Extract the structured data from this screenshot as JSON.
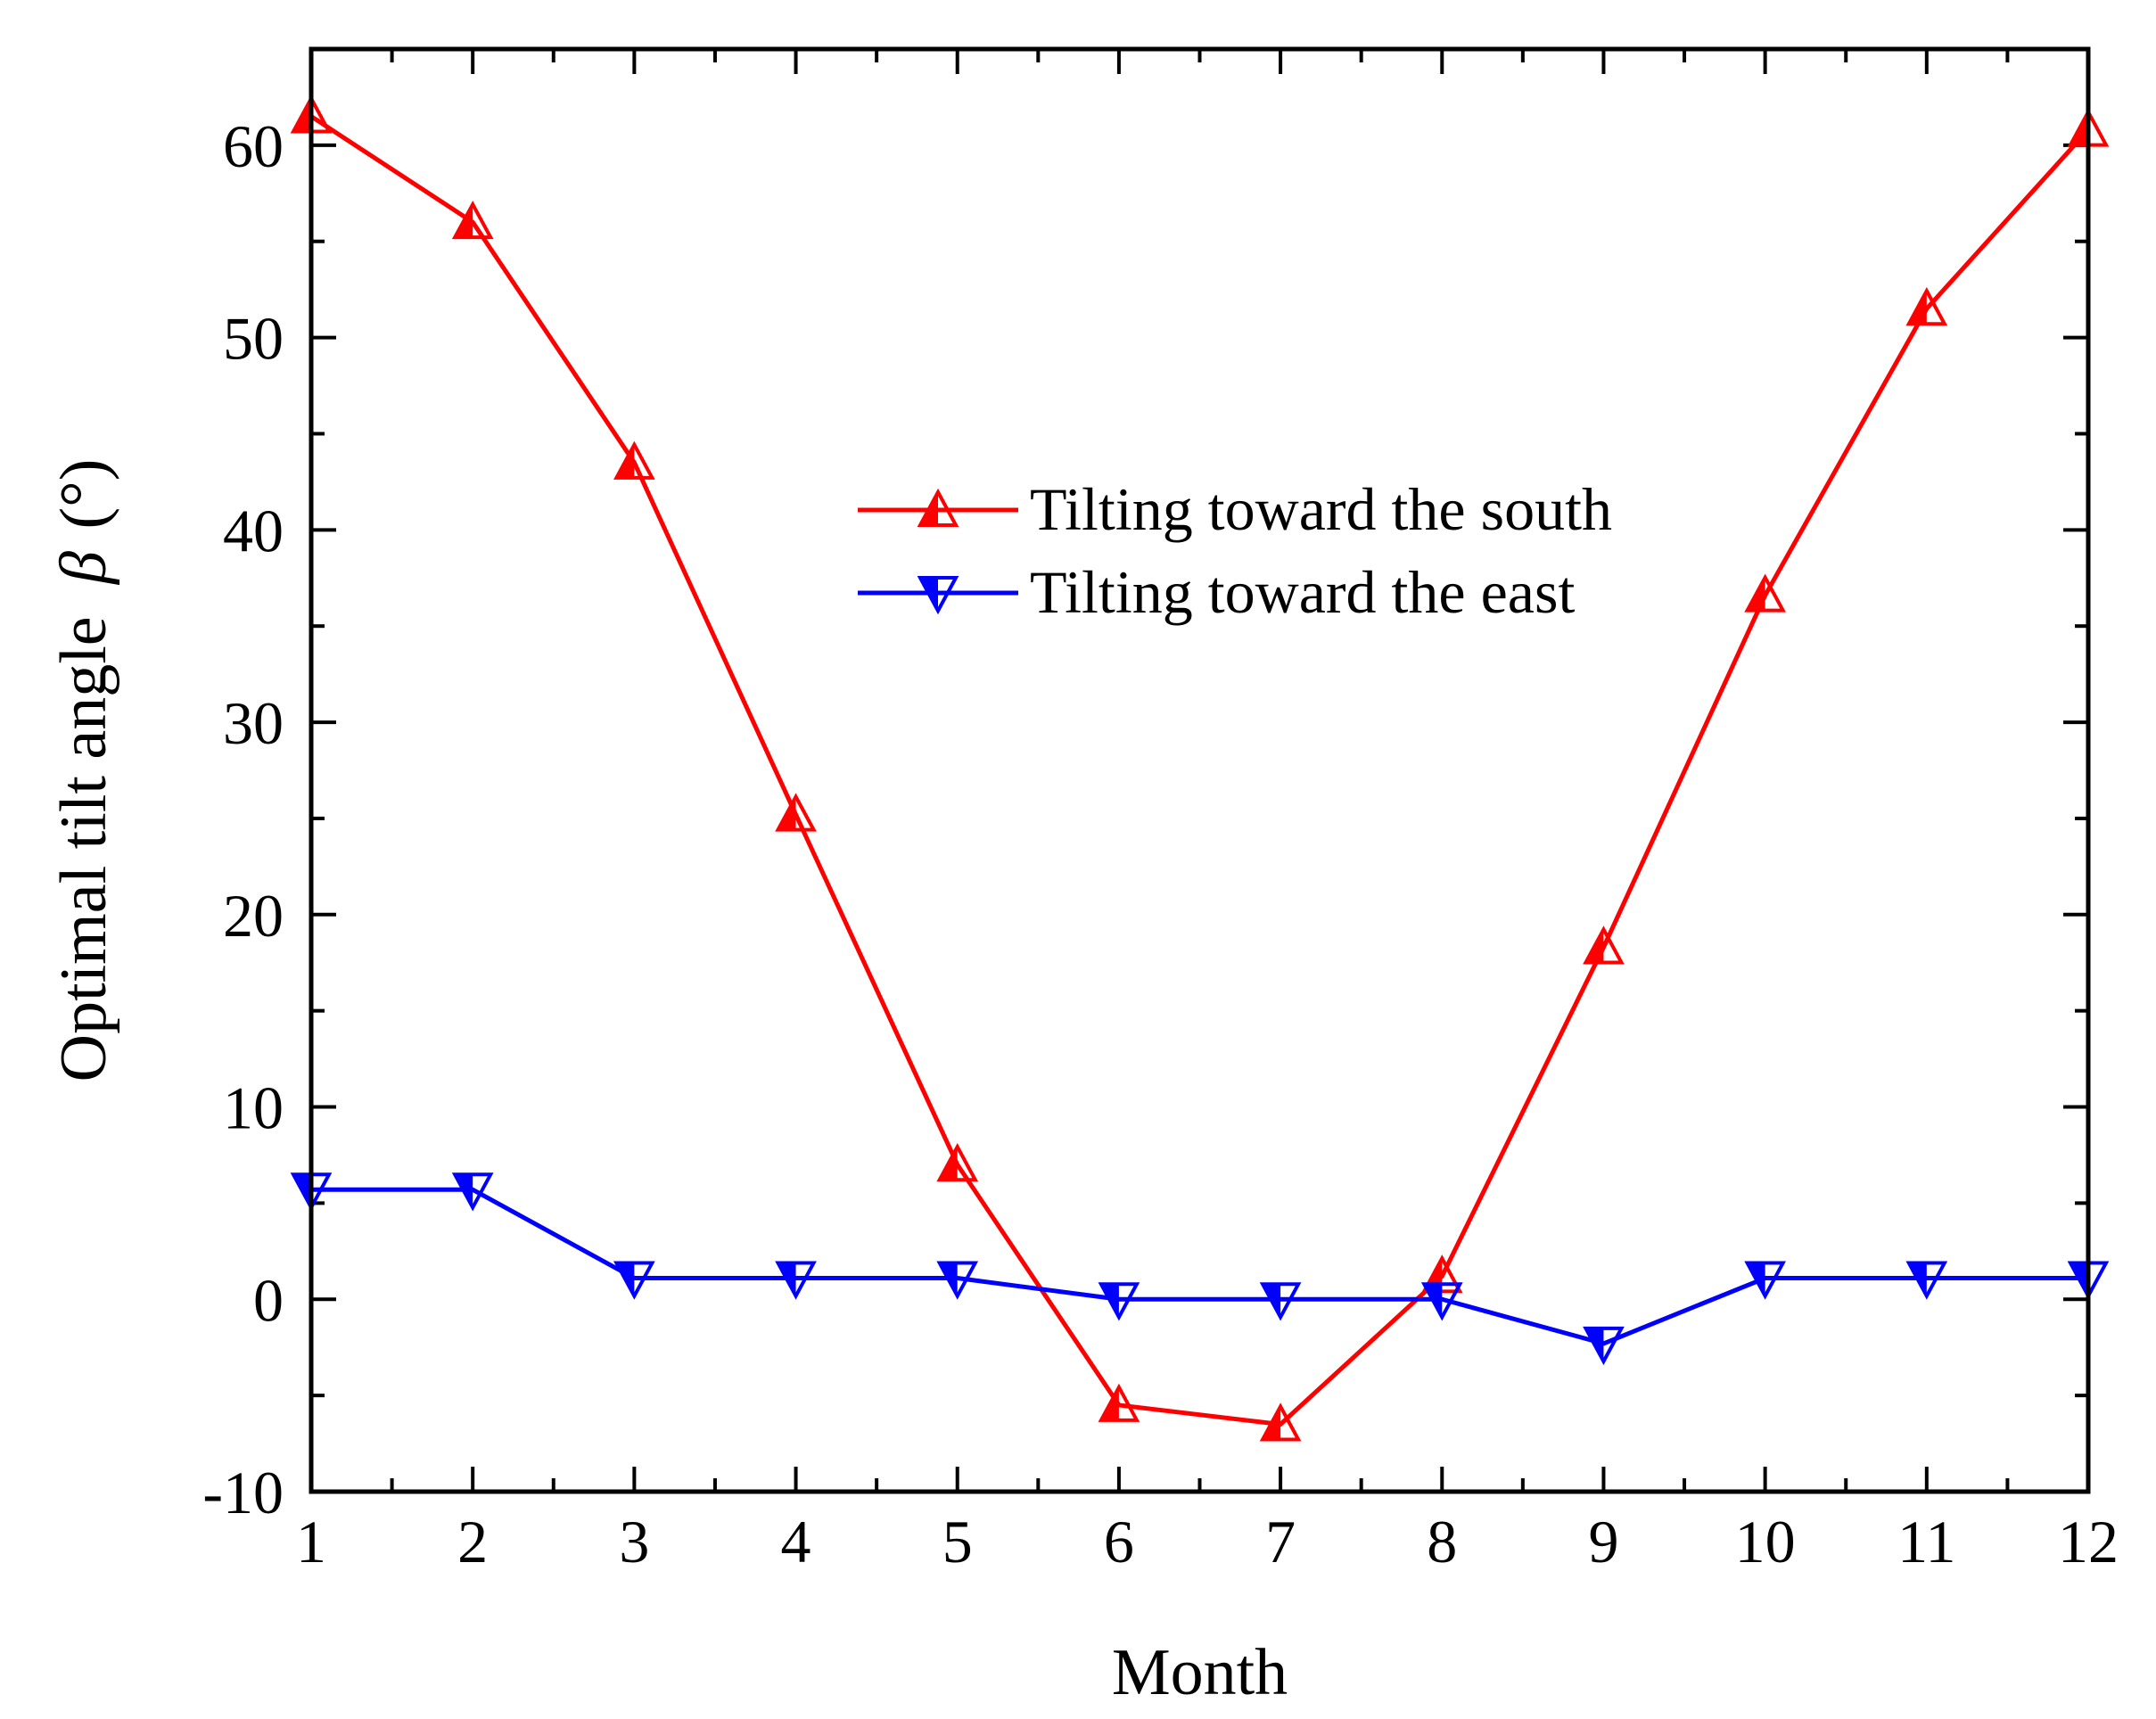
{
  "chart_data": {
    "type": "line",
    "title": "",
    "xlabel": "Month",
    "ylabel_text": "Optimal tilt angle",
    "ylabel_symbol": "β",
    "ylabel_unit": "(°)",
    "x": [
      1,
      2,
      3,
      4,
      5,
      6,
      7,
      8,
      9,
      10,
      11,
      12
    ],
    "xlim": [
      1,
      12
    ],
    "ylim": [
      -10,
      65
    ],
    "x_ticks": [
      1,
      2,
      3,
      4,
      5,
      6,
      7,
      8,
      9,
      10,
      11,
      12
    ],
    "y_ticks": [
      -10,
      0,
      10,
      20,
      30,
      40,
      50,
      60
    ],
    "grid": false,
    "legend_position": "upper-center",
    "series": [
      {
        "name": "Tilting toward the south",
        "color": "#ff0000",
        "marker": "triangle-up-half-filled",
        "values": [
          61.5,
          56,
          43.5,
          25.2,
          7,
          -5.5,
          -6.5,
          1.2,
          18.3,
          36.6,
          51.5,
          60.8
        ]
      },
      {
        "name": "Tilting toward the east",
        "color": "#0000ff",
        "marker": "triangle-down-half-filled",
        "values": [
          5.7,
          5.7,
          1.1,
          1.1,
          1.1,
          0,
          0,
          0,
          -2.3,
          1.1,
          1.1,
          1.1
        ]
      }
    ]
  }
}
